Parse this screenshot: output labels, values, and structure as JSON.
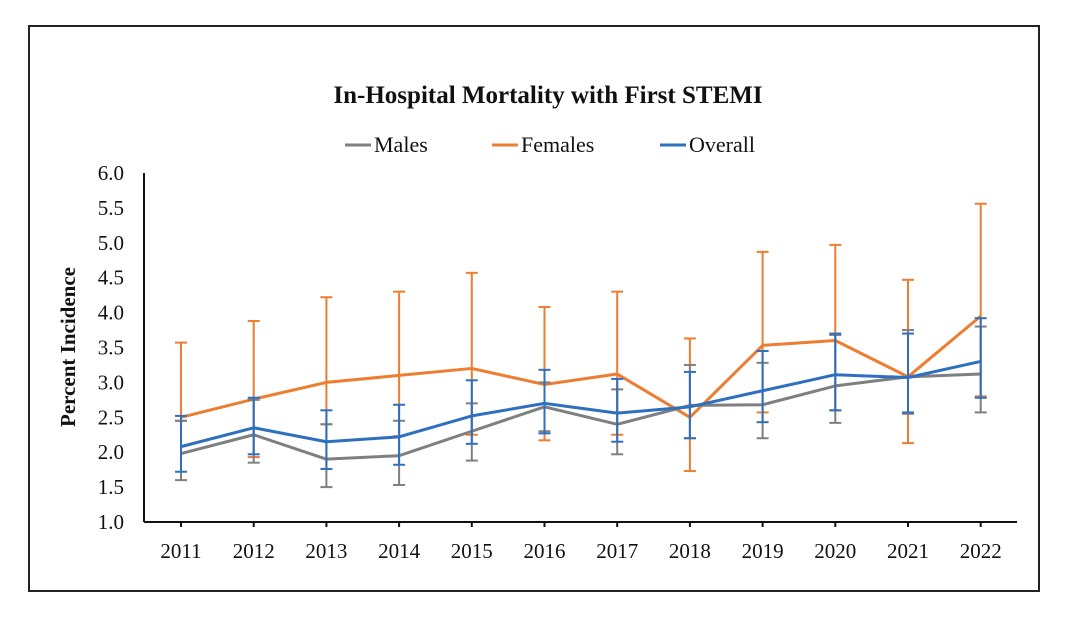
{
  "chart_data": {
    "type": "line",
    "title": "In-Hospital Mortality with First STEMI",
    "xlabel": "",
    "ylabel": "Percent Incidence",
    "ylim": [
      1.0,
      6.0
    ],
    "yticks": [
      "6.0",
      "5.5",
      "5.0",
      "4.5",
      "4.0",
      "3.5",
      "3.0",
      "2.5",
      "2.0",
      "1.5",
      "1.0"
    ],
    "ytick_values": [
      6.0,
      5.5,
      5.0,
      4.5,
      4.0,
      3.5,
      3.0,
      2.5,
      2.0,
      1.5,
      1.0
    ],
    "categories": [
      "2011",
      "2012",
      "2013",
      "2014",
      "2015",
      "2016",
      "2017",
      "2018",
      "2019",
      "2020",
      "2021",
      "2022"
    ],
    "grid": false,
    "legend_position": "top-center",
    "error_bars": true,
    "series": [
      {
        "name": "Males",
        "color": "#7f7f7f",
        "values": [
          1.98,
          2.25,
          1.9,
          1.95,
          2.3,
          2.65,
          2.4,
          2.67,
          2.68,
          2.95,
          3.08,
          3.12
        ],
        "lower": [
          1.6,
          1.85,
          1.5,
          1.53,
          1.88,
          2.3,
          1.97,
          2.2,
          2.2,
          2.42,
          2.55,
          2.57
        ],
        "upper": [
          2.45,
          2.75,
          2.4,
          2.45,
          2.7,
          3.0,
          2.9,
          3.25,
          3.28,
          3.68,
          3.75,
          3.8
        ]
      },
      {
        "name": "Females",
        "color": "#ed7d31",
        "values": [
          2.5,
          2.76,
          3.0,
          3.1,
          3.2,
          2.97,
          3.12,
          2.5,
          3.53,
          3.6,
          3.08,
          3.95
        ],
        "lower": [
          2.45,
          1.93,
          2.4,
          2.23,
          2.25,
          2.17,
          2.25,
          1.73,
          2.57,
          2.6,
          2.13,
          2.8
        ],
        "upper": [
          3.57,
          3.88,
          4.22,
          4.3,
          4.57,
          4.08,
          4.3,
          3.63,
          4.87,
          4.97,
          4.47,
          5.56
        ]
      },
      {
        "name": "Overall",
        "color": "#2f6fbf",
        "values": [
          2.08,
          2.35,
          2.15,
          2.22,
          2.52,
          2.7,
          2.56,
          2.65,
          2.88,
          3.11,
          3.07,
          3.3
        ],
        "lower": [
          1.72,
          1.97,
          1.76,
          1.82,
          2.12,
          2.27,
          2.15,
          2.2,
          2.43,
          2.6,
          2.57,
          2.78
        ],
        "upper": [
          2.52,
          2.78,
          2.6,
          2.68,
          3.03,
          3.18,
          3.05,
          3.15,
          3.45,
          3.7,
          3.7,
          3.92
        ]
      }
    ]
  }
}
